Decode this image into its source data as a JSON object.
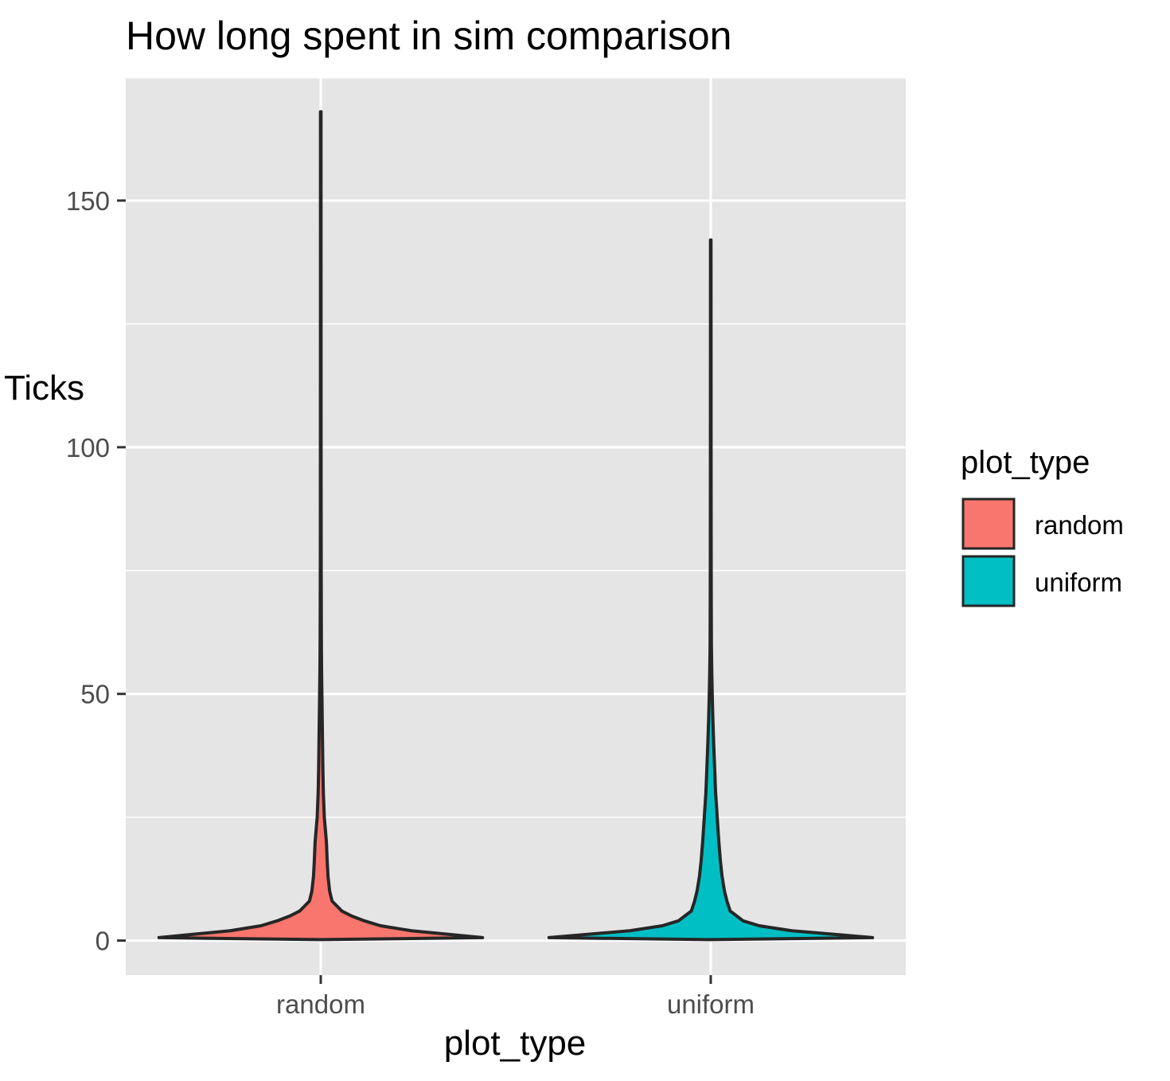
{
  "chart_data": {
    "type": "violin",
    "title": "How long spent in sim comparison",
    "xlabel": "plot_type",
    "ylabel": "Ticks",
    "ylim": [
      -7,
      175
    ],
    "yticks": [
      0,
      50,
      100,
      150
    ],
    "y_minor_gridlines": [
      25,
      75,
      125
    ],
    "grid": true,
    "legend": {
      "title": "plot_type",
      "position": "right"
    },
    "categories": [
      "random",
      "uniform"
    ],
    "colors": {
      "random": "#F8766D",
      "uniform": "#00BFC4"
    },
    "series": [
      {
        "name": "random",
        "y_min": 1,
        "y_max": 168,
        "profile": [
          [
            1,
            1.0
          ],
          [
            2,
            0.56
          ],
          [
            3,
            0.37
          ],
          [
            4,
            0.27
          ],
          [
            5,
            0.19
          ],
          [
            6,
            0.13
          ],
          [
            8,
            0.07
          ],
          [
            10,
            0.055
          ],
          [
            13,
            0.045
          ],
          [
            16,
            0.04
          ],
          [
            20,
            0.035
          ],
          [
            25,
            0.022
          ],
          [
            30,
            0.016
          ],
          [
            35,
            0.013
          ],
          [
            40,
            0.011
          ],
          [
            45,
            0.009
          ],
          [
            50,
            0.007
          ],
          [
            55,
            0.005
          ],
          [
            60,
            0.004
          ],
          [
            70,
            0.003
          ],
          [
            80,
            0.0025
          ],
          [
            100,
            0.002
          ],
          [
            130,
            0.0018
          ],
          [
            168,
            0.0015
          ]
        ]
      },
      {
        "name": "uniform",
        "y_min": 1,
        "y_max": 142,
        "profile": [
          [
            1,
            1.0
          ],
          [
            2,
            0.5
          ],
          [
            3,
            0.3
          ],
          [
            4,
            0.2
          ],
          [
            5,
            0.16
          ],
          [
            6,
            0.12
          ],
          [
            8,
            0.1
          ],
          [
            10,
            0.085
          ],
          [
            13,
            0.07
          ],
          [
            16,
            0.06
          ],
          [
            20,
            0.05
          ],
          [
            25,
            0.04
          ],
          [
            30,
            0.03
          ],
          [
            35,
            0.024
          ],
          [
            40,
            0.018
          ],
          [
            45,
            0.013
          ],
          [
            50,
            0.009
          ],
          [
            55,
            0.006
          ],
          [
            60,
            0.004
          ],
          [
            70,
            0.003
          ],
          [
            80,
            0.0025
          ],
          [
            100,
            0.002
          ],
          [
            142,
            0.0015
          ]
        ]
      }
    ]
  }
}
